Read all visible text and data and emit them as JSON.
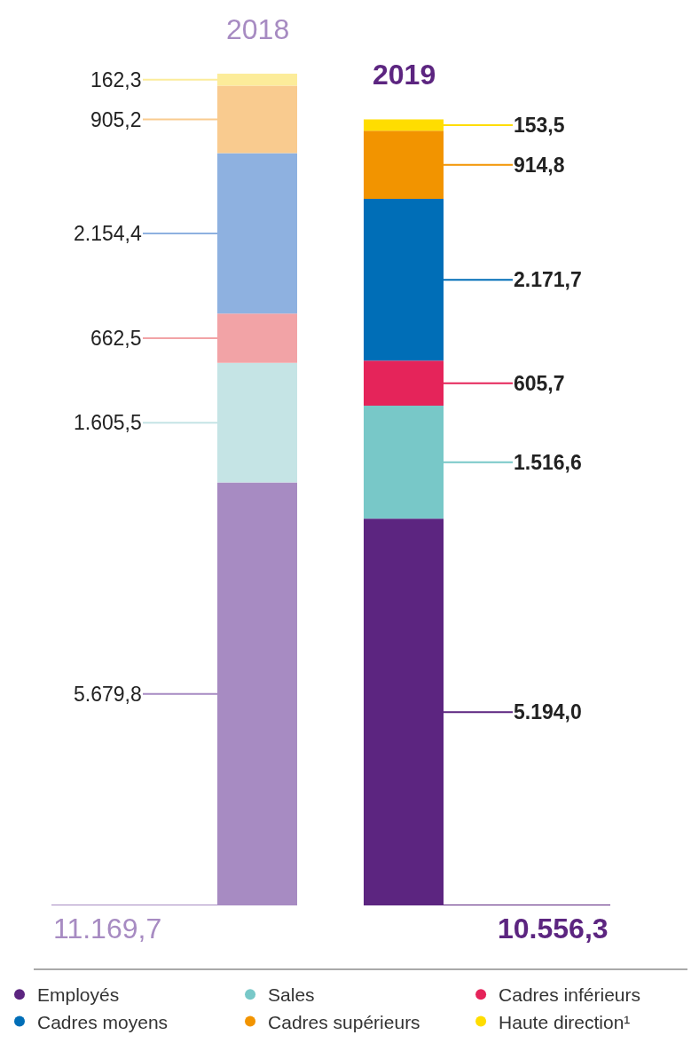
{
  "chart_data": {
    "type": "bar",
    "stacked": true,
    "legend": "bottom",
    "categories": [
      "2018",
      "2019"
    ],
    "series": [
      {
        "name": "Employés",
        "color": "#5c2580",
        "colors": [
          "#a78bc2",
          "#5c2580"
        ],
        "values": [
          5679.8,
          5194.0
        ],
        "value_labels": [
          "5.679,8",
          "5.194,0"
        ]
      },
      {
        "name": "Sales",
        "color": "#78c8c8",
        "colors": [
          "#c5e4e5",
          "#78c8c8"
        ],
        "values": [
          1605.5,
          1516.6
        ],
        "value_labels": [
          "1.605,5",
          "1.516,6"
        ]
      },
      {
        "name": "Cadres inférieurs",
        "color": "#e5245a",
        "colors": [
          "#f2a3a6",
          "#e5245a"
        ],
        "values": [
          662.5,
          605.7
        ],
        "value_labels": [
          "662,5",
          "605,7"
        ]
      },
      {
        "name": "Cadres moyens",
        "color": "#006eb7",
        "colors": [
          "#8eb1e0",
          "#006eb7"
        ],
        "values": [
          2154.4,
          2171.7
        ],
        "value_labels": [
          "2.154,4",
          "2.171,7"
        ]
      },
      {
        "name": "Cadres supérieurs",
        "color": "#f29400",
        "colors": [
          "#f9cb8f",
          "#f29400"
        ],
        "values": [
          905.2,
          914.8
        ],
        "value_labels": [
          "905,2",
          "914,8"
        ]
      },
      {
        "name": "Haute direction¹",
        "color": "#ffdd00",
        "colors": [
          "#fcec9a",
          "#ffdd00"
        ],
        "values": [
          162.3,
          153.5
        ],
        "value_labels": [
          "162,3",
          "153,5"
        ]
      }
    ],
    "totals": [
      "11.169,7",
      "10.556,3"
    ]
  }
}
